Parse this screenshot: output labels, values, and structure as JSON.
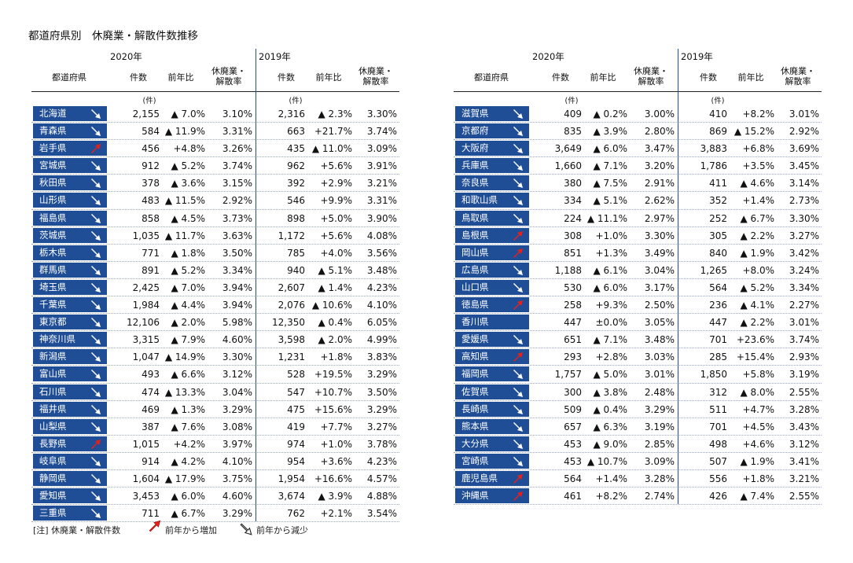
{
  "title": "都道府県別　休廃業・解散件数推移",
  "headers": {
    "year_2020": "2020年",
    "year_2019": "2019年",
    "prefecture": "都道府県",
    "count": "件数",
    "yoy": "前年比",
    "rate_l1": "休廃業・",
    "rate_l2": "解散率",
    "unit": "(件)"
  },
  "left_rows": [
    {
      "pref": "北海道",
      "trend": "down",
      "c20": "2,155",
      "y20": "▲ 7.0%",
      "r20": "3.10%",
      "c19": "2,316",
      "y19": "▲ 2.3%",
      "r19": "3.30%"
    },
    {
      "pref": "青森県",
      "trend": "down",
      "c20": "584",
      "y20": "▲ 11.9%",
      "r20": "3.31%",
      "c19": "663",
      "y19": "+21.7%",
      "r19": "3.74%"
    },
    {
      "pref": "岩手県",
      "trend": "up",
      "c20": "456",
      "y20": "+4.8%",
      "r20": "3.26%",
      "c19": "435",
      "y19": "▲ 11.0%",
      "r19": "3.09%"
    },
    {
      "pref": "宮城県",
      "trend": "down",
      "c20": "912",
      "y20": "▲ 5.2%",
      "r20": "3.74%",
      "c19": "962",
      "y19": "+5.6%",
      "r19": "3.91%"
    },
    {
      "pref": "秋田県",
      "trend": "down",
      "c20": "378",
      "y20": "▲ 3.6%",
      "r20": "3.15%",
      "c19": "392",
      "y19": "+2.9%",
      "r19": "3.21%"
    },
    {
      "pref": "山形県",
      "trend": "down",
      "c20": "483",
      "y20": "▲ 11.5%",
      "r20": "2.92%",
      "c19": "546",
      "y19": "+9.9%",
      "r19": "3.31%"
    },
    {
      "pref": "福島県",
      "trend": "down",
      "c20": "858",
      "y20": "▲ 4.5%",
      "r20": "3.73%",
      "c19": "898",
      "y19": "+5.0%",
      "r19": "3.90%"
    },
    {
      "pref": "茨城県",
      "trend": "down",
      "c20": "1,035",
      "y20": "▲ 11.7%",
      "r20": "3.63%",
      "c19": "1,172",
      "y19": "+5.6%",
      "r19": "4.08%"
    },
    {
      "pref": "栃木県",
      "trend": "down",
      "c20": "771",
      "y20": "▲ 1.8%",
      "r20": "3.50%",
      "c19": "785",
      "y19": "+4.0%",
      "r19": "3.56%"
    },
    {
      "pref": "群馬県",
      "trend": "down",
      "c20": "891",
      "y20": "▲ 5.2%",
      "r20": "3.34%",
      "c19": "940",
      "y19": "▲ 5.1%",
      "r19": "3.48%"
    },
    {
      "pref": "埼玉県",
      "trend": "down",
      "c20": "2,425",
      "y20": "▲ 7.0%",
      "r20": "3.94%",
      "c19": "2,607",
      "y19": "▲ 1.4%",
      "r19": "4.23%"
    },
    {
      "pref": "千葉県",
      "trend": "down",
      "c20": "1,984",
      "y20": "▲ 4.4%",
      "r20": "3.94%",
      "c19": "2,076",
      "y19": "▲ 10.6%",
      "r19": "4.10%"
    },
    {
      "pref": "東京都",
      "trend": "down",
      "c20": "12,106",
      "y20": "▲ 2.0%",
      "r20": "5.98%",
      "c19": "12,350",
      "y19": "▲ 0.4%",
      "r19": "6.05%"
    },
    {
      "pref": "神奈川県",
      "trend": "down",
      "c20": "3,315",
      "y20": "▲ 7.9%",
      "r20": "4.60%",
      "c19": "3,598",
      "y19": "▲ 2.0%",
      "r19": "4.99%"
    },
    {
      "pref": "新潟県",
      "trend": "down",
      "c20": "1,047",
      "y20": "▲ 14.9%",
      "r20": "3.30%",
      "c19": "1,231",
      "y19": "+1.8%",
      "r19": "3.83%"
    },
    {
      "pref": "富山県",
      "trend": "down",
      "c20": "493",
      "y20": "▲ 6.6%",
      "r20": "3.12%",
      "c19": "528",
      "y19": "+19.5%",
      "r19": "3.29%"
    },
    {
      "pref": "石川県",
      "trend": "down",
      "c20": "474",
      "y20": "▲ 13.3%",
      "r20": "3.04%",
      "c19": "547",
      "y19": "+10.7%",
      "r19": "3.50%"
    },
    {
      "pref": "福井県",
      "trend": "down",
      "c20": "469",
      "y20": "▲ 1.3%",
      "r20": "3.29%",
      "c19": "475",
      "y19": "+15.6%",
      "r19": "3.29%"
    },
    {
      "pref": "山梨県",
      "trend": "down",
      "c20": "387",
      "y20": "▲ 7.6%",
      "r20": "3.08%",
      "c19": "419",
      "y19": "+7.7%",
      "r19": "3.27%"
    },
    {
      "pref": "長野県",
      "trend": "up",
      "c20": "1,015",
      "y20": "+4.2%",
      "r20": "3.97%",
      "c19": "974",
      "y19": "+1.0%",
      "r19": "3.78%"
    },
    {
      "pref": "岐阜県",
      "trend": "down",
      "c20": "914",
      "y20": "▲ 4.2%",
      "r20": "4.10%",
      "c19": "954",
      "y19": "+3.6%",
      "r19": "4.23%"
    },
    {
      "pref": "静岡県",
      "trend": "down",
      "c20": "1,604",
      "y20": "▲ 17.9%",
      "r20": "3.75%",
      "c19": "1,954",
      "y19": "+16.6%",
      "r19": "4.57%"
    },
    {
      "pref": "愛知県",
      "trend": "down",
      "c20": "3,453",
      "y20": "▲ 6.0%",
      "r20": "4.60%",
      "c19": "3,674",
      "y19": "▲ 3.9%",
      "r19": "4.88%"
    },
    {
      "pref": "三重県",
      "trend": "down",
      "c20": "711",
      "y20": "▲ 6.7%",
      "r20": "3.29%",
      "c19": "762",
      "y19": "+2.1%",
      "r19": "3.54%"
    }
  ],
  "right_rows": [
    {
      "pref": "滋賀県",
      "trend": "down",
      "c20": "409",
      "y20": "▲ 0.2%",
      "r20": "3.00%",
      "c19": "410",
      "y19": "+8.2%",
      "r19": "3.01%"
    },
    {
      "pref": "京都府",
      "trend": "down",
      "c20": "835",
      "y20": "▲ 3.9%",
      "r20": "2.80%",
      "c19": "869",
      "y19": "▲ 15.2%",
      "r19": "2.92%"
    },
    {
      "pref": "大阪府",
      "trend": "down",
      "c20": "3,649",
      "y20": "▲ 6.0%",
      "r20": "3.47%",
      "c19": "3,883",
      "y19": "+6.8%",
      "r19": "3.69%"
    },
    {
      "pref": "兵庫県",
      "trend": "down",
      "c20": "1,660",
      "y20": "▲ 7.1%",
      "r20": "3.20%",
      "c19": "1,786",
      "y19": "+3.5%",
      "r19": "3.45%"
    },
    {
      "pref": "奈良県",
      "trend": "down",
      "c20": "380",
      "y20": "▲ 7.5%",
      "r20": "2.91%",
      "c19": "411",
      "y19": "▲ 4.6%",
      "r19": "3.14%"
    },
    {
      "pref": "和歌山県",
      "trend": "down",
      "c20": "334",
      "y20": "▲ 5.1%",
      "r20": "2.62%",
      "c19": "352",
      "y19": "+1.4%",
      "r19": "2.73%"
    },
    {
      "pref": "鳥取県",
      "trend": "down",
      "c20": "224",
      "y20": "▲ 11.1%",
      "r20": "2.97%",
      "c19": "252",
      "y19": "▲ 6.7%",
      "r19": "3.30%"
    },
    {
      "pref": "島根県",
      "trend": "up",
      "c20": "308",
      "y20": "+1.0%",
      "r20": "3.30%",
      "c19": "305",
      "y19": "▲ 2.2%",
      "r19": "3.27%"
    },
    {
      "pref": "岡山県",
      "trend": "up",
      "c20": "851",
      "y20": "+1.3%",
      "r20": "3.49%",
      "c19": "840",
      "y19": "▲ 1.9%",
      "r19": "3.42%"
    },
    {
      "pref": "広島県",
      "trend": "down",
      "c20": "1,188",
      "y20": "▲ 6.1%",
      "r20": "3.04%",
      "c19": "1,265",
      "y19": "+8.0%",
      "r19": "3.24%"
    },
    {
      "pref": "山口県",
      "trend": "down",
      "c20": "530",
      "y20": "▲ 6.0%",
      "r20": "3.17%",
      "c19": "564",
      "y19": "▲ 5.2%",
      "r19": "3.34%"
    },
    {
      "pref": "徳島県",
      "trend": "up",
      "c20": "258",
      "y20": "+9.3%",
      "r20": "2.50%",
      "c19": "236",
      "y19": "▲ 4.1%",
      "r19": "2.27%"
    },
    {
      "pref": "香川県",
      "trend": "none",
      "c20": "447",
      "y20": "±0.0%",
      "r20": "3.05%",
      "c19": "447",
      "y19": "▲ 2.2%",
      "r19": "3.01%"
    },
    {
      "pref": "愛媛県",
      "trend": "down",
      "c20": "651",
      "y20": "▲ 7.1%",
      "r20": "3.48%",
      "c19": "701",
      "y19": "+23.6%",
      "r19": "3.74%"
    },
    {
      "pref": "高知県",
      "trend": "up",
      "c20": "293",
      "y20": "+2.8%",
      "r20": "3.03%",
      "c19": "285",
      "y19": "+15.4%",
      "r19": "2.93%"
    },
    {
      "pref": "福岡県",
      "trend": "down",
      "c20": "1,757",
      "y20": "▲ 5.0%",
      "r20": "3.01%",
      "c19": "1,850",
      "y19": "+5.8%",
      "r19": "3.19%"
    },
    {
      "pref": "佐賀県",
      "trend": "down",
      "c20": "300",
      "y20": "▲ 3.8%",
      "r20": "2.48%",
      "c19": "312",
      "y19": "▲ 8.0%",
      "r19": "2.55%"
    },
    {
      "pref": "長崎県",
      "trend": "down",
      "c20": "509",
      "y20": "▲ 0.4%",
      "r20": "3.29%",
      "c19": "511",
      "y19": "+4.7%",
      "r19": "3.28%"
    },
    {
      "pref": "熊本県",
      "trend": "down",
      "c20": "657",
      "y20": "▲ 6.3%",
      "r20": "3.19%",
      "c19": "701",
      "y19": "+4.5%",
      "r19": "3.43%"
    },
    {
      "pref": "大分県",
      "trend": "down",
      "c20": "453",
      "y20": "▲ 9.0%",
      "r20": "2.85%",
      "c19": "498",
      "y19": "+4.6%",
      "r19": "3.12%"
    },
    {
      "pref": "宮崎県",
      "trend": "down",
      "c20": "453",
      "y20": "▲ 10.7%",
      "r20": "3.09%",
      "c19": "507",
      "y19": "▲ 1.9%",
      "r19": "3.41%"
    },
    {
      "pref": "鹿児島県",
      "trend": "up",
      "c20": "564",
      "y20": "+1.4%",
      "r20": "3.28%",
      "c19": "556",
      "y19": "+1.8%",
      "r19": "3.21%"
    },
    {
      "pref": "沖縄県",
      "trend": "up",
      "c20": "461",
      "y20": "+8.2%",
      "r20": "2.74%",
      "c19": "426",
      "y19": "▲ 7.4%",
      "r19": "2.55%"
    }
  ],
  "footer": {
    "note": "[注] 休廃業・解散件数",
    "up_label": "前年から増加",
    "down_label": "前年から減少"
  },
  "colors": {
    "pref_bg": "#1f4e96",
    "up_arrow": "#e8201a",
    "down_arrow": "#ffffff"
  }
}
